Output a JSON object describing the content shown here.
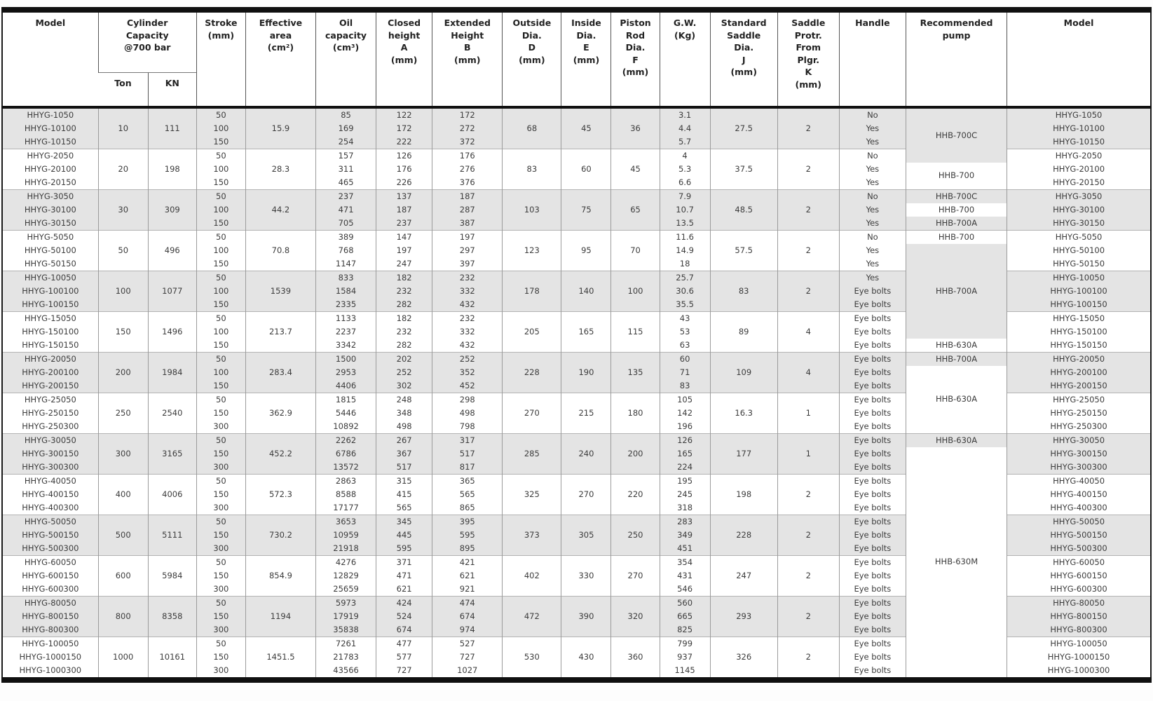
{
  "table": {
    "headers": [
      {
        "label": "Model"
      },
      {
        "label": "Cylinder\nCapacity\n@700 bar",
        "sub": [
          "Ton",
          "KN"
        ]
      },
      {
        "label": "Stroke\n(mm)"
      },
      {
        "label": "Effective\narea\n(cm²)"
      },
      {
        "label": "Oil\ncapacity\n(cm³)"
      },
      {
        "label": "Closed\nheight\nA\n(mm)"
      },
      {
        "label": "Extended\nHeight\nB\n(mm)"
      },
      {
        "label": "Outside\nDia.\nD\n(mm)"
      },
      {
        "label": "Inside\nDia.\nE\n(mm)"
      },
      {
        "label": "Piston\nRod\nDia.\nF\n(mm)"
      },
      {
        "label": "G.W.\n(Kg)"
      },
      {
        "label": "Standard\nSaddle\nDia.\nJ\n(mm)"
      },
      {
        "label": "Saddle\nProtr.\nFrom\nPlgr.\nK\n(mm)"
      },
      {
        "label": "Handle"
      },
      {
        "label": "Recommended\npump"
      },
      {
        "label": "Model"
      }
    ],
    "groups": [
      {
        "ton": "10",
        "kn": "111",
        "effective_area": "15.9",
        "outside_dia": "68",
        "inside_dia": "45",
        "piston_rod": "36",
        "saddle_dia": "27.5",
        "saddle_protr": "2",
        "rows": [
          {
            "model": "HHYG-1050",
            "stroke": "50",
            "oil": "85",
            "closed": "122",
            "extended": "172",
            "gw": "3.1",
            "handle": "No"
          },
          {
            "model": "HHYG-10100",
            "stroke": "100",
            "oil": "169",
            "closed": "172",
            "extended": "272",
            "gw": "4.4",
            "handle": "Yes"
          },
          {
            "model": "HHYG-10150",
            "stroke": "150",
            "oil": "254",
            "closed": "222",
            "extended": "372",
            "gw": "5.7",
            "handle": "Yes"
          }
        ]
      },
      {
        "ton": "20",
        "kn": "198",
        "effective_area": "28.3",
        "outside_dia": "83",
        "inside_dia": "60",
        "piston_rod": "45",
        "saddle_dia": "37.5",
        "saddle_protr": "2",
        "rows": [
          {
            "model": "HHYG-2050",
            "stroke": "50",
            "oil": "157",
            "closed": "126",
            "extended": "176",
            "gw": "4",
            "handle": "No"
          },
          {
            "model": "HHYG-20100",
            "stroke": "100",
            "oil": "311",
            "closed": "176",
            "extended": "276",
            "gw": "5.3",
            "handle": "Yes"
          },
          {
            "model": "HHYG-20150",
            "stroke": "150",
            "oil": "465",
            "closed": "226",
            "extended": "376",
            "gw": "6.6",
            "handle": "Yes"
          }
        ]
      },
      {
        "ton": "30",
        "kn": "309",
        "effective_area": "44.2",
        "outside_dia": "103",
        "inside_dia": "75",
        "piston_rod": "65",
        "saddle_dia": "48.5",
        "saddle_protr": "2",
        "rows": [
          {
            "model": "HHYG-3050",
            "stroke": "50",
            "oil": "237",
            "closed": "137",
            "extended": "187",
            "gw": "7.9",
            "handle": "No"
          },
          {
            "model": "HHYG-30100",
            "stroke": "100",
            "oil": "471",
            "closed": "187",
            "extended": "287",
            "gw": "10.7",
            "handle": "Yes"
          },
          {
            "model": "HHYG-30150",
            "stroke": "150",
            "oil": "705",
            "closed": "237",
            "extended": "387",
            "gw": "13.5",
            "handle": "Yes"
          }
        ]
      },
      {
        "ton": "50",
        "kn": "496",
        "effective_area": "70.8",
        "outside_dia": "123",
        "inside_dia": "95",
        "piston_rod": "70",
        "saddle_dia": "57.5",
        "saddle_protr": "2",
        "rows": [
          {
            "model": "HHYG-5050",
            "stroke": "50",
            "oil": "389",
            "closed": "147",
            "extended": "197",
            "gw": "11.6",
            "handle": "No"
          },
          {
            "model": "HHYG-50100",
            "stroke": "100",
            "oil": "768",
            "closed": "197",
            "extended": "297",
            "gw": "14.9",
            "handle": "Yes"
          },
          {
            "model": "HHYG-50150",
            "stroke": "150",
            "oil": "1147",
            "closed": "247",
            "extended": "397",
            "gw": "18",
            "handle": "Yes"
          }
        ]
      },
      {
        "ton": "100",
        "kn": "1077",
        "effective_area": "1539",
        "outside_dia": "178",
        "inside_dia": "140",
        "piston_rod": "100",
        "saddle_dia": "83",
        "saddle_protr": "2",
        "rows": [
          {
            "model": "HHYG-10050",
            "stroke": "50",
            "oil": "833",
            "closed": "182",
            "extended": "232",
            "gw": "25.7",
            "handle": "Yes"
          },
          {
            "model": "HHYG-100100",
            "stroke": "100",
            "oil": "1584",
            "closed": "232",
            "extended": "332",
            "gw": "30.6",
            "handle": "Eye bolts"
          },
          {
            "model": "HHYG-100150",
            "stroke": "150",
            "oil": "2335",
            "closed": "282",
            "extended": "432",
            "gw": "35.5",
            "handle": "Eye bolts"
          }
        ]
      },
      {
        "ton": "150",
        "kn": "1496",
        "effective_area": "213.7",
        "outside_dia": "205",
        "inside_dia": "165",
        "piston_rod": "115",
        "saddle_dia": "89",
        "saddle_protr": "4",
        "rows": [
          {
            "model": "HHYG-15050",
            "stroke": "50",
            "oil": "1133",
            "closed": "182",
            "extended": "232",
            "gw": "43",
            "handle": "Eye bolts"
          },
          {
            "model": "HHYG-150100",
            "stroke": "100",
            "oil": "2237",
            "closed": "232",
            "extended": "332",
            "gw": "53",
            "handle": "Eye bolts"
          },
          {
            "model": "HHYG-150150",
            "stroke": "150",
            "oil": "3342",
            "closed": "282",
            "extended": "432",
            "gw": "63",
            "handle": "Eye bolts"
          }
        ]
      },
      {
        "ton": "200",
        "kn": "1984",
        "effective_area": "283.4",
        "outside_dia": "228",
        "inside_dia": "190",
        "piston_rod": "135",
        "saddle_dia": "109",
        "saddle_protr": "4",
        "rows": [
          {
            "model": "HHYG-20050",
            "stroke": "50",
            "oil": "1500",
            "closed": "202",
            "extended": "252",
            "gw": "60",
            "handle": "Eye bolts"
          },
          {
            "model": "HHYG-200100",
            "stroke": "100",
            "oil": "2953",
            "closed": "252",
            "extended": "352",
            "gw": "71",
            "handle": "Eye bolts"
          },
          {
            "model": "HHYG-200150",
            "stroke": "150",
            "oil": "4406",
            "closed": "302",
            "extended": "452",
            "gw": "83",
            "handle": "Eye bolts"
          }
        ]
      },
      {
        "ton": "250",
        "kn": "2540",
        "effective_area": "362.9",
        "outside_dia": "270",
        "inside_dia": "215",
        "piston_rod": "180",
        "saddle_dia": "16.3",
        "saddle_protr": "1",
        "rows": [
          {
            "model": "HHYG-25050",
            "stroke": "50",
            "oil": "1815",
            "closed": "248",
            "extended": "298",
            "gw": "105",
            "handle": "Eye bolts"
          },
          {
            "model": "HHYG-250150",
            "stroke": "150",
            "oil": "5446",
            "closed": "348",
            "extended": "498",
            "gw": "142",
            "handle": "Eye bolts"
          },
          {
            "model": "HHYG-250300",
            "stroke": "300",
            "oil": "10892",
            "closed": "498",
            "extended": "798",
            "gw": "196",
            "handle": "Eye bolts"
          }
        ]
      },
      {
        "ton": "300",
        "kn": "3165",
        "effective_area": "452.2",
        "outside_dia": "285",
        "inside_dia": "240",
        "piston_rod": "200",
        "saddle_dia": "177",
        "saddle_protr": "1",
        "rows": [
          {
            "model": "HHYG-30050",
            "stroke": "50",
            "oil": "2262",
            "closed": "267",
            "extended": "317",
            "gw": "126",
            "handle": "Eye bolts"
          },
          {
            "model": "HHYG-300150",
            "stroke": "150",
            "oil": "6786",
            "closed": "367",
            "extended": "517",
            "gw": "165",
            "handle": "Eye bolts"
          },
          {
            "model": "HHYG-300300",
            "stroke": "300",
            "oil": "13572",
            "closed": "517",
            "extended": "817",
            "gw": "224",
            "handle": "Eye bolts"
          }
        ]
      },
      {
        "ton": "400",
        "kn": "4006",
        "effective_area": "572.3",
        "outside_dia": "325",
        "inside_dia": "270",
        "piston_rod": "220",
        "saddle_dia": "198",
        "saddle_protr": "2",
        "rows": [
          {
            "model": "HHYG-40050",
            "stroke": "50",
            "oil": "2863",
            "closed": "315",
            "extended": "365",
            "gw": "195",
            "handle": "Eye bolts"
          },
          {
            "model": "HHYG-400150",
            "stroke": "150",
            "oil": "8588",
            "closed": "415",
            "extended": "565",
            "gw": "245",
            "handle": "Eye bolts"
          },
          {
            "model": "HHYG-400300",
            "stroke": "300",
            "oil": "17177",
            "closed": "565",
            "extended": "865",
            "gw": "318",
            "handle": "Eye bolts"
          }
        ]
      },
      {
        "ton": "500",
        "kn": "5111",
        "effective_area": "730.2",
        "outside_dia": "373",
        "inside_dia": "305",
        "piston_rod": "250",
        "saddle_dia": "228",
        "saddle_protr": "2",
        "rows": [
          {
            "model": "HHYG-50050",
            "stroke": "50",
            "oil": "3653",
            "closed": "345",
            "extended": "395",
            "gw": "283",
            "handle": "Eye bolts"
          },
          {
            "model": "HHYG-500150",
            "stroke": "150",
            "oil": "10959",
            "closed": "445",
            "extended": "595",
            "gw": "349",
            "handle": "Eye bolts"
          },
          {
            "model": "HHYG-500300",
            "stroke": "300",
            "oil": "21918",
            "closed": "595",
            "extended": "895",
            "gw": "451",
            "handle": "Eye bolts"
          }
        ]
      },
      {
        "ton": "600",
        "kn": "5984",
        "effective_area": "854.9",
        "outside_dia": "402",
        "inside_dia": "330",
        "piston_rod": "270",
        "saddle_dia": "247",
        "saddle_protr": "2",
        "rows": [
          {
            "model": "HHYG-60050",
            "stroke": "50",
            "oil": "4276",
            "closed": "371",
            "extended": "421",
            "gw": "354",
            "handle": "Eye bolts"
          },
          {
            "model": "HHYG-600150",
            "stroke": "150",
            "oil": "12829",
            "closed": "471",
            "extended": "621",
            "gw": "431",
            "handle": "Eye bolts"
          },
          {
            "model": "HHYG-600300",
            "stroke": "300",
            "oil": "25659",
            "closed": "621",
            "extended": "921",
            "gw": "546",
            "handle": "Eye bolts"
          }
        ]
      },
      {
        "ton": "800",
        "kn": "8358",
        "effective_area": "1194",
        "outside_dia": "472",
        "inside_dia": "390",
        "piston_rod": "320",
        "saddle_dia": "293",
        "saddle_protr": "2",
        "rows": [
          {
            "model": "HHYG-80050",
            "stroke": "50",
            "oil": "5973",
            "closed": "424",
            "extended": "474",
            "gw": "560",
            "handle": "Eye bolts"
          },
          {
            "model": "HHYG-800150",
            "stroke": "150",
            "oil": "17919",
            "closed": "524",
            "extended": "674",
            "gw": "665",
            "handle": "Eye bolts"
          },
          {
            "model": "HHYG-800300",
            "stroke": "300",
            "oil": "35838",
            "closed": "674",
            "extended": "974",
            "gw": "825",
            "handle": "Eye bolts"
          }
        ]
      },
      {
        "ton": "1000",
        "kn": "10161",
        "effective_area": "1451.5",
        "outside_dia": "530",
        "inside_dia": "430",
        "piston_rod": "360",
        "saddle_dia": "326",
        "saddle_protr": "2",
        "rows": [
          {
            "model": "HHYG-100050",
            "stroke": "50",
            "oil": "7261",
            "closed": "477",
            "extended": "527",
            "gw": "799",
            "handle": "Eye bolts"
          },
          {
            "model": "HHYG-1000150",
            "stroke": "150",
            "oil": "21783",
            "closed": "577",
            "extended": "727",
            "gw": "937",
            "handle": "Eye bolts"
          },
          {
            "model": "HHYG-1000300",
            "stroke": "300",
            "oil": "43566",
            "closed": "727",
            "extended": "1027",
            "gw": "1145",
            "handle": "Eye bolts"
          }
        ]
      }
    ],
    "pump_segments": [
      {
        "start": 1,
        "span": 4,
        "label": "HHB-700C",
        "bg": "gray"
      },
      {
        "start": 5,
        "span": 2,
        "label": "HHB-700",
        "bg": "white"
      },
      {
        "start": 7,
        "span": 1,
        "label": "HHB-700C",
        "bg": "gray"
      },
      {
        "start": 8,
        "span": 1,
        "label": "HHB-700",
        "bg": "white"
      },
      {
        "start": 9,
        "span": 1,
        "label": "HHB-700A",
        "bg": "gray"
      },
      {
        "start": 10,
        "span": 1,
        "label": "HHB-700",
        "bg": "white"
      },
      {
        "start": 11,
        "span": 7,
        "label": "HHB-700A",
        "bg": "gray"
      },
      {
        "start": 18,
        "span": 1,
        "label": "HHB-630A",
        "bg": "white"
      },
      {
        "start": 19,
        "span": 1,
        "label": "HHB-700A",
        "bg": "gray"
      },
      {
        "start": 20,
        "span": 5,
        "label": "HHB-630A",
        "bg": "white"
      },
      {
        "start": 25,
        "span": 1,
        "label": "HHB-630A",
        "bg": "gray"
      },
      {
        "start": 26,
        "span": 17,
        "label": "HHB-630M",
        "bg": "white"
      }
    ]
  }
}
